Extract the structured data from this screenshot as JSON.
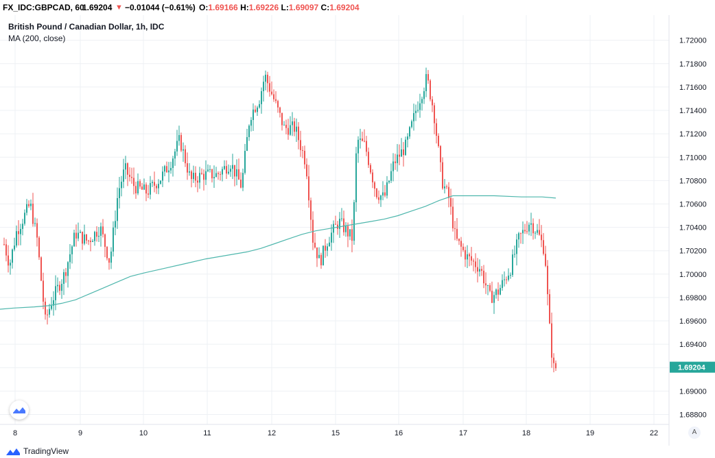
{
  "header": {
    "ticker": "FX_IDC:GBPCAD, 60",
    "last": "1.69204",
    "change": "−0.01044 (−0.61%)",
    "open_label": "O:",
    "open": "1.69166",
    "high_label": "H:",
    "high": "1.69226",
    "low_label": "L:",
    "low": "1.69097",
    "close_label": "C:",
    "close": "1.69204"
  },
  "legend": {
    "title": "British Pound / Canadian Dollar, 1h, IDC",
    "indicator": "MA (200, close)"
  },
  "footer": {
    "brand": "TradingView",
    "auto_button": "A"
  },
  "colors": {
    "up": "#26a69a",
    "down": "#ef5350",
    "ma": "#4db6ac",
    "grid": "#eef0f4",
    "badge": "#26a69a"
  },
  "chart_data": {
    "type": "candlestick",
    "y_axis": {
      "ticks": [
        "1.72000",
        "1.71800",
        "1.71600",
        "1.71400",
        "1.71200",
        "1.71000",
        "1.70800",
        "1.70600",
        "1.70400",
        "1.70200",
        "1.70000",
        "1.69800",
        "1.69600",
        "1.69400",
        "1.69200",
        "1.69000",
        "1.68800"
      ],
      "range": [
        1.6875,
        1.7218
      ],
      "last_price_badge": "1.69204"
    },
    "x_axis": {
      "labels": [
        "8",
        "9",
        "10",
        "11",
        "12",
        "15",
        "16",
        "17",
        "18",
        "19",
        "22"
      ]
    },
    "ma": {
      "name": "MA (200, close)",
      "points": [
        [
          0,
          1.697
        ],
        [
          20,
          1.6971
        ],
        [
          50,
          1.6972
        ],
        [
          70,
          1.6973
        ],
        [
          90,
          1.6975
        ],
        [
          110,
          1.6978
        ],
        [
          130,
          1.6983
        ],
        [
          150,
          1.6988
        ],
        [
          170,
          1.6993
        ],
        [
          190,
          1.6998
        ],
        [
          210,
          1.7001
        ],
        [
          240,
          1.7005
        ],
        [
          270,
          1.7009
        ],
        [
          300,
          1.7013
        ],
        [
          330,
          1.7016
        ],
        [
          360,
          1.7019
        ],
        [
          380,
          1.7022
        ],
        [
          400,
          1.7026
        ],
        [
          420,
          1.703
        ],
        [
          440,
          1.7034
        ],
        [
          460,
          1.7037
        ],
        [
          480,
          1.7039
        ],
        [
          500,
          1.7041
        ],
        [
          520,
          1.7043
        ],
        [
          540,
          1.7045
        ],
        [
          560,
          1.7047
        ],
        [
          580,
          1.705
        ],
        [
          600,
          1.7054
        ],
        [
          620,
          1.7058
        ],
        [
          640,
          1.7063
        ],
        [
          660,
          1.7067
        ],
        [
          680,
          1.7067
        ],
        [
          720,
          1.7067
        ],
        [
          760,
          1.7066
        ],
        [
          790,
          1.7066
        ],
        [
          810,
          1.7065
        ]
      ]
    }
  }
}
